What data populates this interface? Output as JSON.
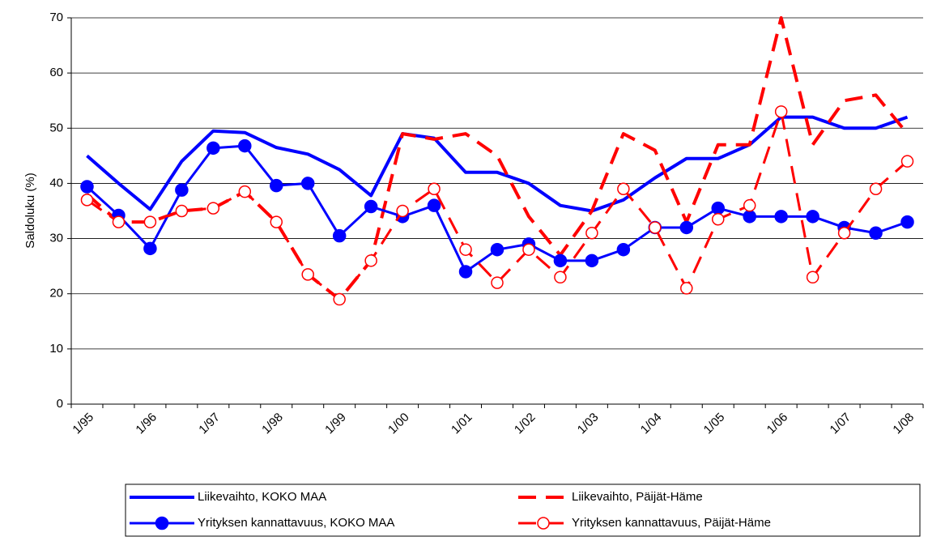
{
  "chart_data": {
    "type": "line",
    "y_label": "Saldoluku (%)",
    "categories": [
      "1/95",
      null,
      "1/96",
      null,
      "1/97",
      null,
      "1/98",
      null,
      "1/99",
      null,
      "1/00",
      null,
      "1/01",
      null,
      "1/02",
      null,
      "1/03",
      null,
      "1/04",
      null,
      "1/05",
      null,
      "1/06",
      null,
      "1/07",
      null,
      "1/08"
    ],
    "ylim": [
      0,
      70
    ],
    "yticks": [
      0,
      10,
      20,
      30,
      40,
      50,
      60,
      70
    ],
    "grid": true,
    "series": [
      {
        "name": "Liikevaihto, KOKO MAA",
        "color": "#0000ff",
        "dash": false,
        "marker": "none",
        "values": [
          45,
          40,
          35.3,
          44,
          49.5,
          49.2,
          46.5,
          45.3,
          42.5,
          37.8,
          49,
          48.2,
          42,
          42,
          40,
          36,
          35,
          37,
          41,
          44.5,
          44.5,
          47,
          52,
          52,
          50,
          50,
          52
        ]
      },
      {
        "name": "Liikevaihto, Päijät-Häme",
        "color": "#ff0000",
        "dash": true,
        "marker": "none",
        "values": [
          38,
          33,
          33,
          35,
          35.5,
          38.5,
          33,
          23.5,
          19,
          26,
          49,
          48,
          49,
          45,
          34,
          27,
          35,
          49,
          46,
          33,
          47,
          47,
          70,
          47,
          55,
          56,
          49
        ]
      },
      {
        "name": "Yrityksen kannattavuus, KOKO MAA",
        "color": "#0000ff",
        "dash": false,
        "marker": "filled",
        "values": [
          39.4,
          34.2,
          28.2,
          38.8,
          46.4,
          46.8,
          39.6,
          40,
          30.5,
          35.8,
          34,
          36,
          24,
          28,
          29,
          26,
          26,
          28,
          32,
          32,
          35.5,
          34,
          34,
          34,
          32,
          31,
          33
        ]
      },
      {
        "name": "Yrityksen kannattavuus, Päijät-Häme",
        "color": "#ff0000",
        "dash": true,
        "marker": "open",
        "values": [
          37,
          33,
          33,
          35,
          35.5,
          38.5,
          33,
          23.5,
          19,
          26,
          35,
          39,
          28,
          22,
          28,
          23,
          31,
          39,
          32,
          21,
          33.5,
          36,
          53,
          23,
          31,
          39,
          44
        ]
      }
    ]
  }
}
